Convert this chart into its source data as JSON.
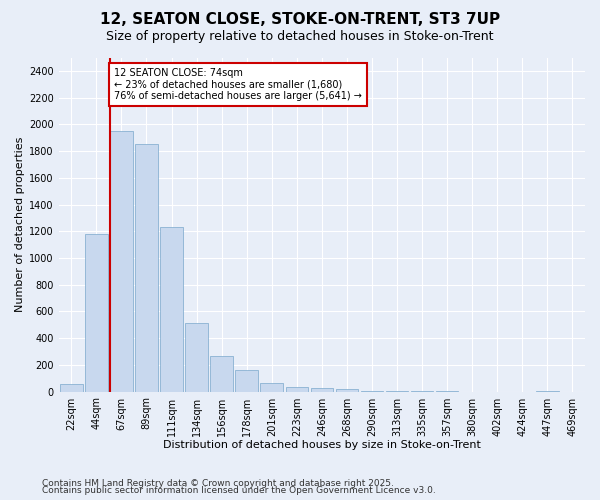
{
  "title1": "12, SEATON CLOSE, STOKE-ON-TRENT, ST3 7UP",
  "title2": "Size of property relative to detached houses in Stoke-on-Trent",
  "xlabel": "Distribution of detached houses by size in Stoke-on-Trent",
  "ylabel": "Number of detached properties",
  "categories": [
    "22sqm",
    "44sqm",
    "67sqm",
    "89sqm",
    "111sqm",
    "134sqm",
    "156sqm",
    "178sqm",
    "201sqm",
    "223sqm",
    "246sqm",
    "268sqm",
    "290sqm",
    "313sqm",
    "335sqm",
    "357sqm",
    "380sqm",
    "402sqm",
    "424sqm",
    "447sqm",
    "469sqm"
  ],
  "values": [
    55,
    1180,
    1950,
    1850,
    1230,
    510,
    270,
    160,
    65,
    35,
    30,
    20,
    5,
    2,
    2,
    1,
    0,
    0,
    0,
    1,
    0
  ],
  "bar_color": "#c8d8ee",
  "bar_edge_color": "#7aa8cc",
  "vline_color": "#cc0000",
  "annotation_text": "12 SEATON CLOSE: 74sqm\n← 23% of detached houses are smaller (1,680)\n76% of semi-detached houses are larger (5,641) →",
  "annotation_box_color": "#ffffff",
  "annotation_box_edge": "#cc0000",
  "ylim": [
    0,
    2500
  ],
  "yticks": [
    0,
    200,
    400,
    600,
    800,
    1000,
    1200,
    1400,
    1600,
    1800,
    2000,
    2200,
    2400
  ],
  "footer1": "Contains HM Land Registry data © Crown copyright and database right 2025.",
  "footer2": "Contains public sector information licensed under the Open Government Licence v3.0.",
  "bg_color": "#e8eef8",
  "plot_bg_color": "#e8eef8",
  "title1_fontsize": 11,
  "title2_fontsize": 9,
  "tick_fontsize": 7,
  "label_fontsize": 8,
  "footer_fontsize": 6.5,
  "vline_bin_index": 2
}
